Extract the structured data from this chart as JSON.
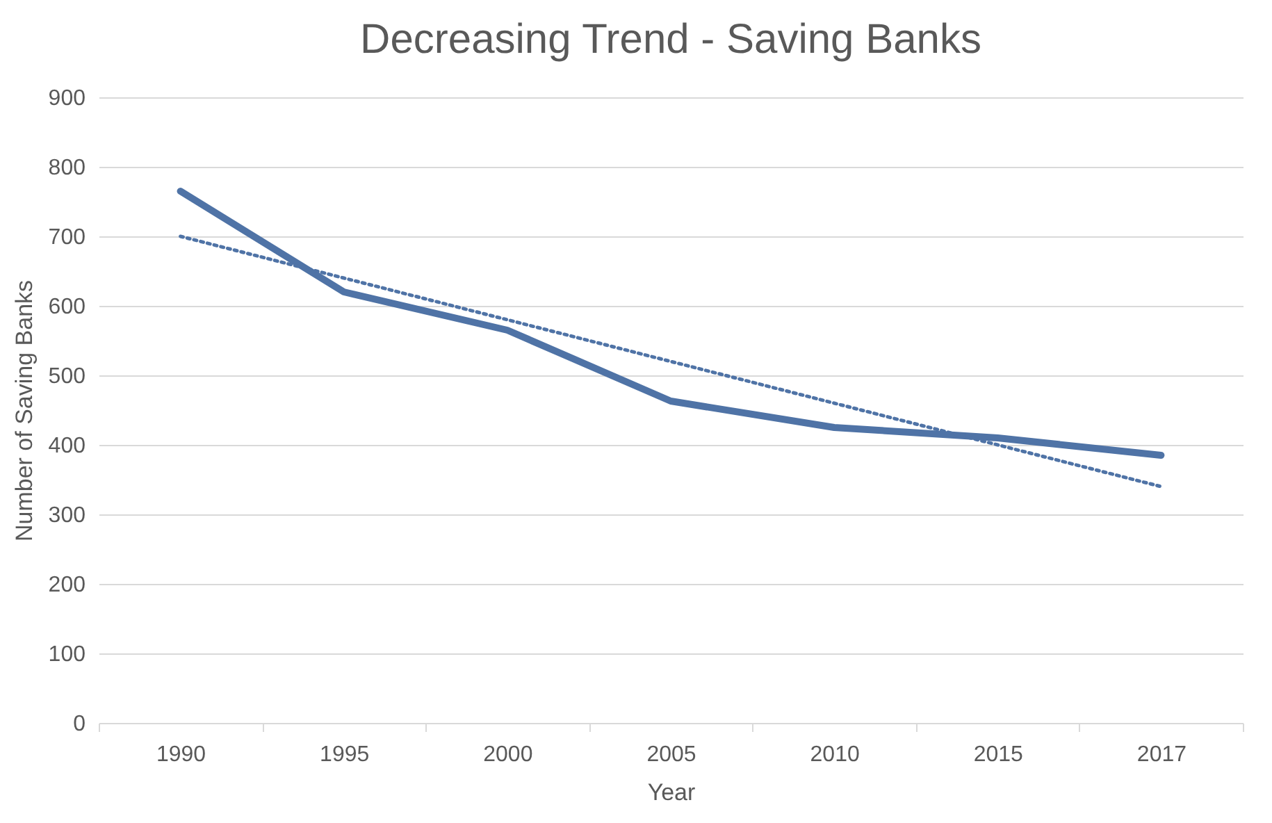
{
  "chart_data": {
    "type": "line",
    "title": "Decreasing Trend - Saving Banks",
    "xlabel": "Year",
    "ylabel": "Number of Saving Banks",
    "categories": [
      "1990",
      "1995",
      "2000",
      "2005",
      "2010",
      "2015",
      "2017"
    ],
    "series": [
      {
        "color": "#4f73a6",
        "values": [
          765,
          620,
          565,
          463,
          425,
          410,
          385
        ],
        "line_style": "solid"
      },
      {
        "type": "line",
        "color": "#4f73a6",
        "values": [
          700,
          640,
          580,
          520,
          460,
          400,
          340
        ],
        "line_style": "dotted"
      }
    ],
    "ylim": [
      0,
      900
    ],
    "yticks": [
      0,
      100,
      200,
      300,
      400,
      500,
      600,
      700,
      800,
      900
    ],
    "grid": "y"
  }
}
